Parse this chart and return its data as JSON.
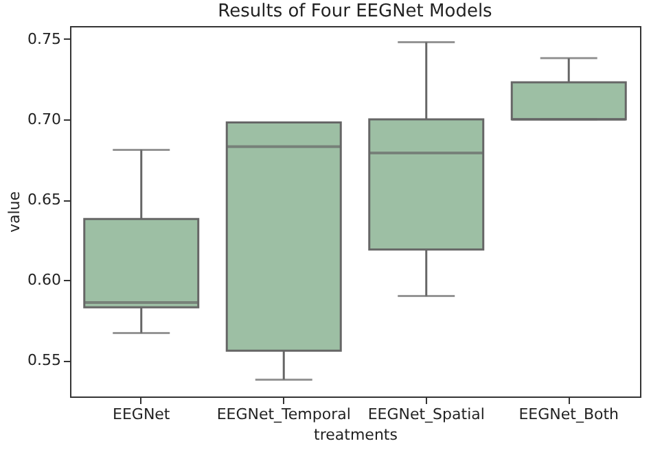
{
  "chart_data": {
    "type": "box",
    "title": "Results of Four EEGNet Models",
    "xlabel": "treatments",
    "ylabel": "value",
    "categories": [
      "EEGNet",
      "EEGNet_Temporal",
      "EEGNet_Spatial",
      "EEGNet_Both"
    ],
    "ylim": [
      0.5275,
      0.758
    ],
    "yticks": [
      0.55,
      {
        "value": 0.6,
        "label": "0.60"
      },
      0.65,
      {
        "value": 0.7,
        "label": "0.70"
      },
      0.75
    ],
    "grid": false,
    "series": [
      {
        "color": "#9dbfa4",
        "boxes": [
          {
            "low": 0.567,
            "q1": 0.583,
            "median": 0.586,
            "q3": 0.638,
            "high": 0.681
          },
          {
            "low": 0.538,
            "q1": 0.556,
            "median": 0.683,
            "q3": 0.698,
            "high": 0.698
          },
          {
            "low": 0.59,
            "q1": 0.619,
            "median": 0.679,
            "q3": 0.7,
            "high": 0.748
          },
          {
            "low": 0.7,
            "q1": 0.7,
            "median": 0.7,
            "q3": 0.723,
            "high": 0.738
          }
        ]
      }
    ]
  }
}
